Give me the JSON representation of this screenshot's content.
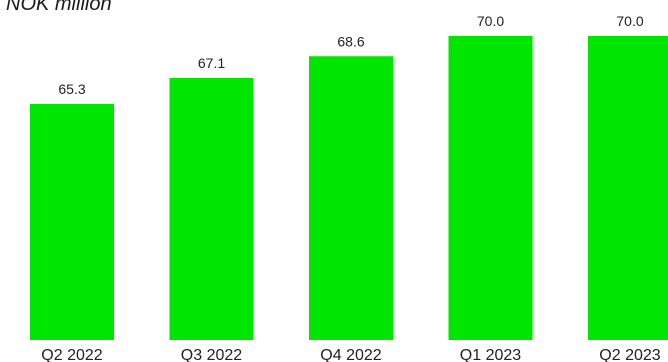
{
  "chart_data": {
    "type": "bar",
    "unit_label": "NOK million",
    "categories": [
      "Q2 2022",
      "Q3 2022",
      "Q4 2022",
      "Q1 2023",
      "Q2 2023"
    ],
    "values": [
      65.3,
      67.1,
      68.6,
      70.0,
      70.0
    ],
    "value_labels": [
      "65.3",
      "67.1",
      "68.6",
      "70.0",
      "70.0"
    ],
    "bar_color": "#00e600",
    "grid": false
  }
}
